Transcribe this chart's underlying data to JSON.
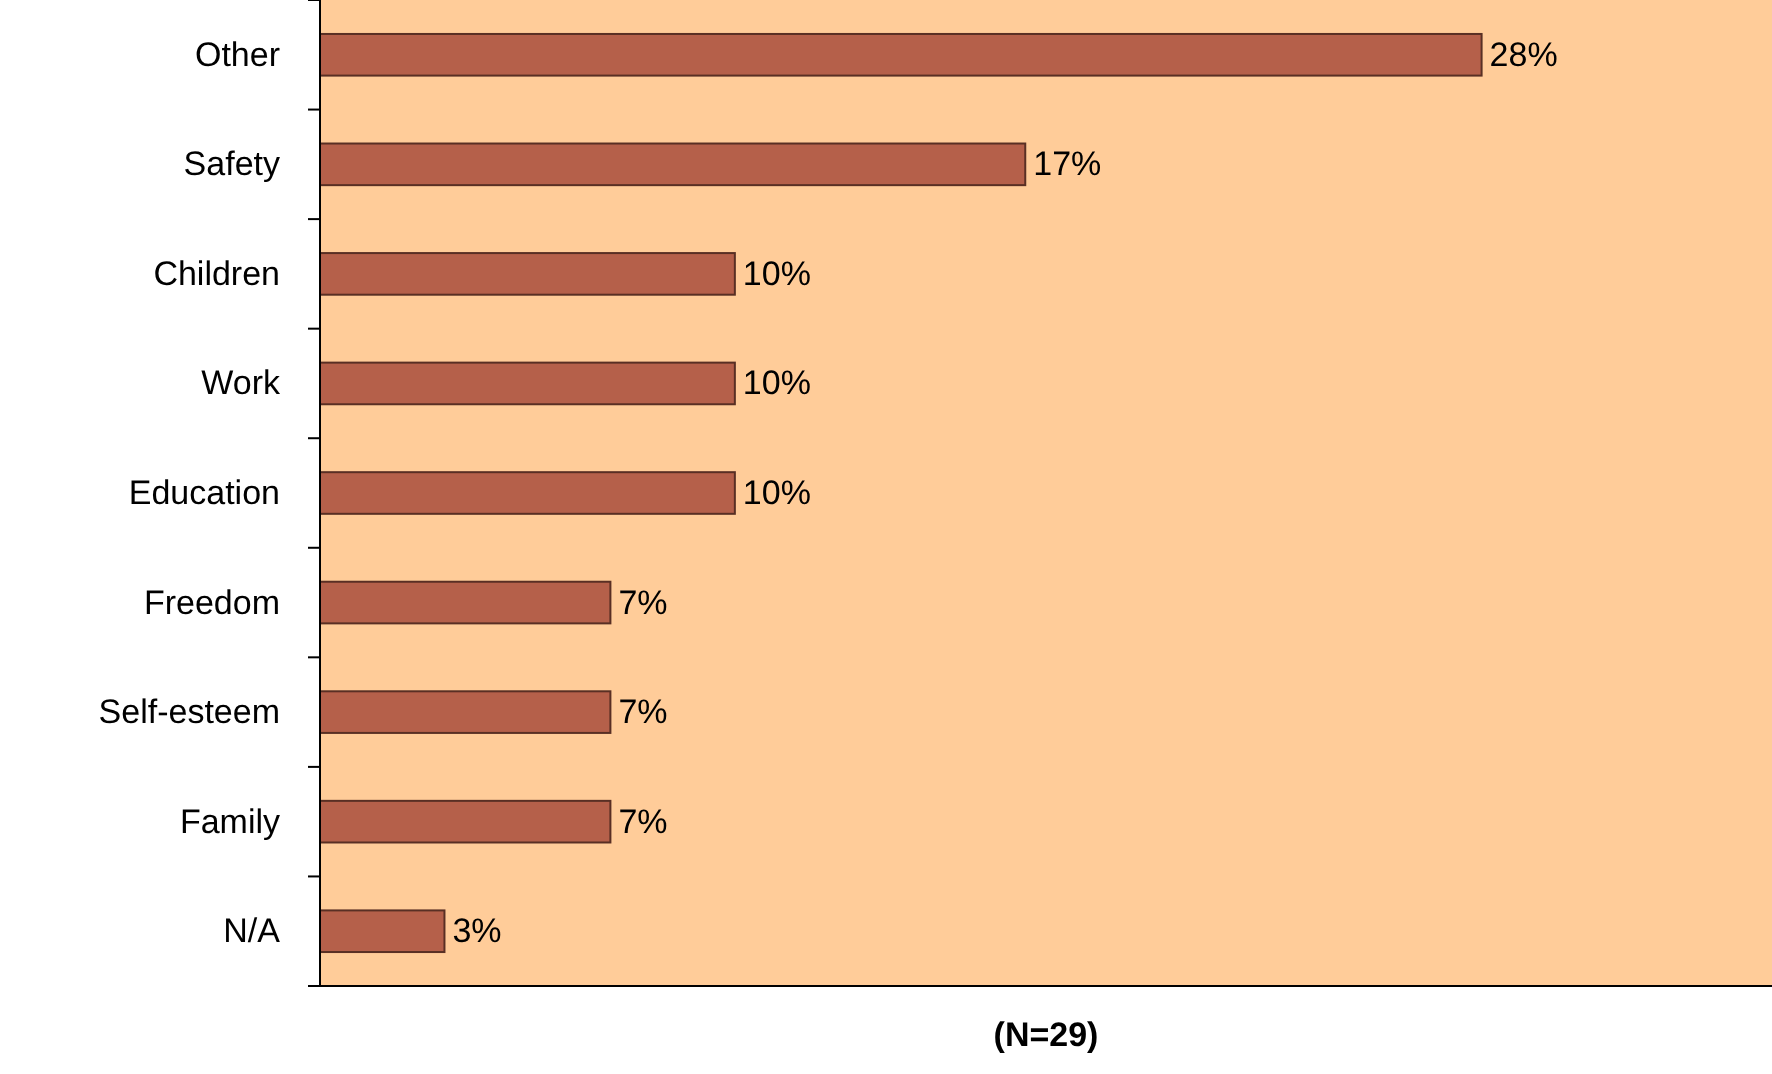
{
  "chart_data": {
    "type": "bar",
    "orientation": "horizontal",
    "xlabel": "(N=29)",
    "categories": [
      "Other",
      "Safety",
      "Children",
      "Work",
      "Education",
      "Freedom",
      "Self-esteem",
      "Family",
      "N/A"
    ],
    "values": [
      28,
      17,
      10,
      10,
      10,
      7,
      7,
      7,
      3
    ],
    "value_labels": [
      "28%",
      "17%",
      "10%",
      "10%",
      "10%",
      "7%",
      "7%",
      "7%",
      "3%"
    ],
    "color": "#b5604a",
    "xlim": [
      0,
      35
    ],
    "tick_labels": "y"
  }
}
